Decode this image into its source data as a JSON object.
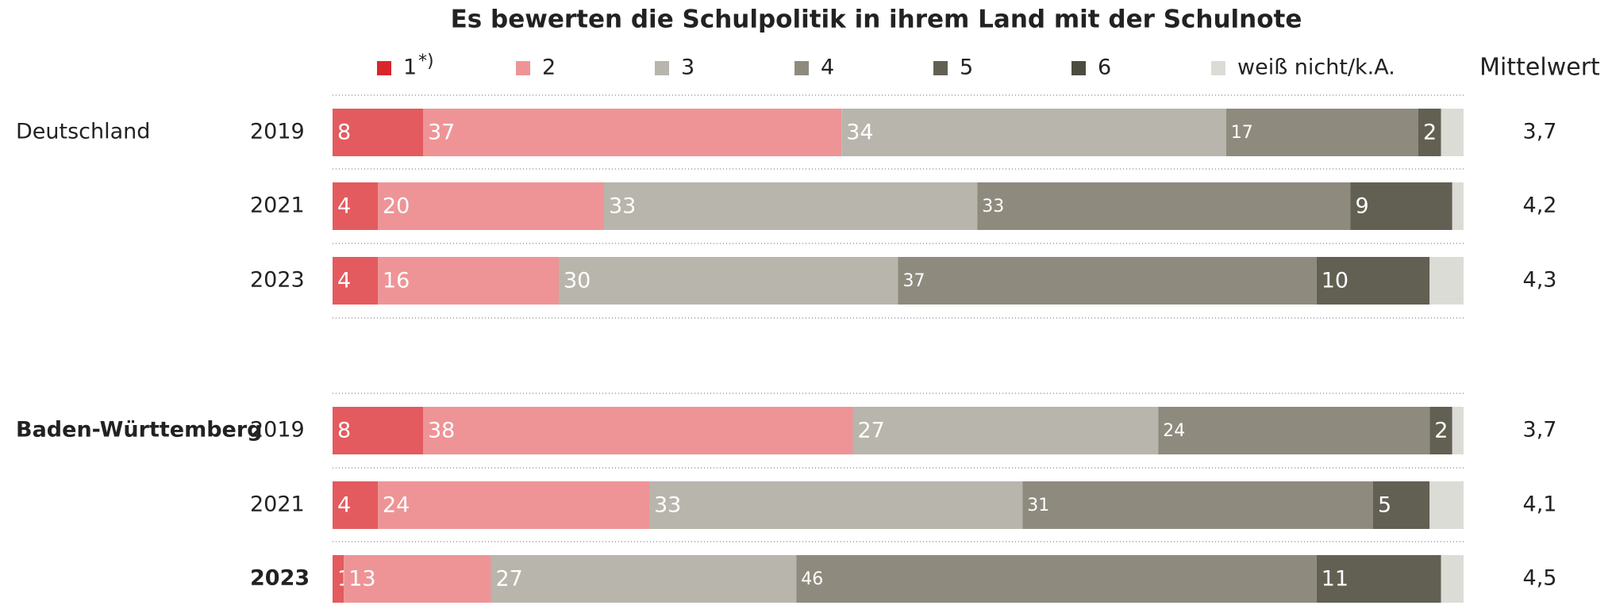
{
  "chart_data": {
    "type": "stacked-bar",
    "title": "Es bewerten die Schulpolitik in ihrem Land mit der Schulnote",
    "groups": [
      "Deutschland",
      "Baden-Württemberg"
    ],
    "categories": [
      "2019",
      "2021",
      "2023",
      "2019",
      "2021",
      "2023"
    ],
    "legend_note": "*)",
    "xlim": [
      0,
      100
    ],
    "series": [
      {
        "name": "1",
        "color": "#e35b5e",
        "values": [
          8,
          4,
          4,
          8,
          4,
          1
        ]
      },
      {
        "name": "2",
        "color": "#ee9496",
        "values": [
          37,
          20,
          16,
          38,
          24,
          13
        ]
      },
      {
        "name": "3",
        "color": "#b8b5ac",
        "values": [
          34,
          33,
          30,
          27,
          33,
          27
        ]
      },
      {
        "name": "4",
        "color": "#8e8b7e",
        "values": [
          17,
          33,
          37,
          24,
          31,
          46
        ]
      },
      {
        "name": "5",
        "color": "#626052",
        "values": [
          2,
          9,
          10,
          2,
          5,
          11
        ]
      },
      {
        "name": "6",
        "color": "#4e4c40",
        "values": [
          0,
          0,
          0,
          0,
          0,
          0
        ]
      },
      {
        "name": "weiß nicht/k.A.",
        "color": "#dcdcd7",
        "values": [
          2,
          1,
          3,
          1,
          3,
          2
        ]
      }
    ],
    "means": {
      "title": "Mittelwert",
      "values": [
        3.7,
        4.2,
        4.3,
        3.7,
        4.1,
        4.5
      ],
      "value_labels": [
        "3,7",
        "4,2",
        "4,3",
        "3,7",
        "4,1",
        "4,5"
      ]
    }
  }
}
